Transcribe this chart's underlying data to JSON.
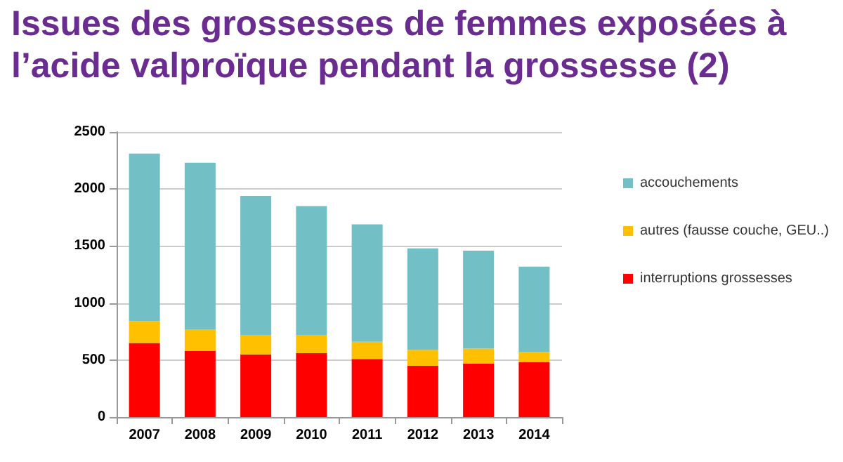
{
  "chart_data": {
    "type": "bar",
    "title": "Issues des grossesses de femmes exposées à l’acide valproïque pendant la grossesse (2)",
    "categories": [
      "2007",
      "2008",
      "2009",
      "2010",
      "2011",
      "2012",
      "2013",
      "2014"
    ],
    "stacked": true,
    "series": [
      {
        "name": "interruptions grossesses",
        "color": "#ff0000",
        "values": [
          650,
          580,
          550,
          560,
          510,
          450,
          470,
          480
        ]
      },
      {
        "name": "autres (fausse couche, GEU..)",
        "color": "#ffc000",
        "values": [
          190,
          190,
          170,
          160,
          150,
          140,
          130,
          90
        ]
      },
      {
        "name": "accouchements",
        "color": "#72bfc5",
        "values": [
          1470,
          1460,
          1220,
          1130,
          1030,
          890,
          860,
          750
        ]
      }
    ],
    "ylim": [
      0,
      2500
    ],
    "yticks": [
      0,
      500,
      1000,
      1500,
      2000,
      2500
    ],
    "grid": "y",
    "legend": "right"
  }
}
